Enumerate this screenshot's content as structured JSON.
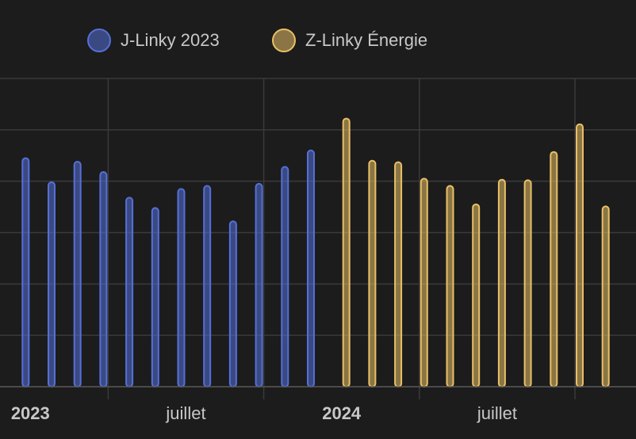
{
  "chart_data": {
    "type": "bar",
    "x": [
      "2023-01",
      "2023-02",
      "2023-03",
      "2023-04",
      "2023-05",
      "2023-06",
      "2023-07",
      "2023-08",
      "2023-09",
      "2023-10",
      "2023-11",
      "2023-12",
      "2024-01",
      "2024-02",
      "2024-03",
      "2024-04",
      "2024-05",
      "2024-06",
      "2024-07",
      "2024-08",
      "2024-09",
      "2024-10",
      "2024-11"
    ],
    "series": [
      {
        "name": "J-Linky 2023",
        "color": "#5570d8",
        "values": [
          4.45,
          3.98,
          4.38,
          4.18,
          3.68,
          3.48,
          3.85,
          3.91,
          3.22,
          3.95,
          4.28,
          4.6,
          null,
          null,
          null,
          null,
          null,
          null,
          null,
          null,
          null,
          null,
          null
        ]
      },
      {
        "name": "Z-Linky Énergie",
        "color": "#e8c066",
        "values": [
          null,
          null,
          null,
          null,
          null,
          null,
          null,
          null,
          null,
          null,
          null,
          null,
          5.22,
          4.4,
          4.37,
          4.05,
          3.91,
          3.55,
          4.03,
          4.02,
          4.57,
          5.11,
          3.51
        ]
      }
    ],
    "ylim": [
      0,
      6
    ],
    "yticks": [
      0,
      1,
      2,
      3,
      4,
      5,
      6
    ],
    "grid": true,
    "xticks": [
      {
        "value": "2023-01",
        "label": "2023"
      },
      {
        "value": "2023-07",
        "label": "juillet"
      },
      {
        "value": "2024-01",
        "label": "2024"
      },
      {
        "value": "2024-07",
        "label": "juillet"
      }
    ],
    "xgrid": [
      "2023-04",
      "2023-10",
      "2024-04",
      "2024-10"
    ]
  }
}
